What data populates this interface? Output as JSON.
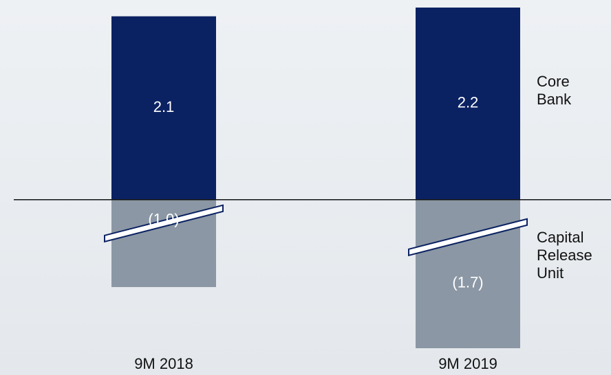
{
  "chart_data": {
    "type": "bar",
    "stacked": true,
    "categories": [
      "9M 2018",
      "9M 2019"
    ],
    "series": [
      {
        "name": "Core Bank",
        "color": "#0b2262",
        "values": [
          2.1,
          2.2
        ]
      },
      {
        "name": "Capital Release Unit",
        "color": "#8b97a4",
        "values": [
          -1.0,
          -1.7
        ],
        "value_labels": [
          "(1.0)",
          "(1.7)"
        ]
      }
    ]
  }
}
